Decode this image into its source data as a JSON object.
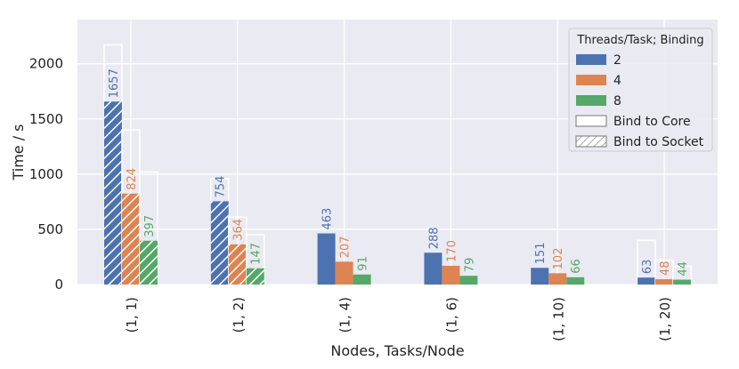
{
  "chart_data": {
    "type": "bar",
    "xlabel": "Nodes, Tasks/Node",
    "ylabel": "Time / s",
    "ylim": [
      0,
      2400
    ],
    "yticks": [
      0,
      500,
      1000,
      1500,
      2000
    ],
    "grid": true,
    "categories": [
      "(1, 1)",
      "(1, 2)",
      "(1, 4)",
      "(1, 6)",
      "(1, 10)",
      "(1, 20)"
    ],
    "legend": {
      "title": "Threads/Task; Binding",
      "placement": "top-right",
      "entries": [
        "2",
        "4",
        "8",
        "Bind to Core",
        "Bind to Socket"
      ]
    },
    "colors": {
      "2": "#4c72b0",
      "4": "#dd8452",
      "8": "#55a868",
      "grid": "#ffffff",
      "background": "#eaeaf2"
    },
    "series": [
      {
        "name": "2",
        "binding": "Bind to Socket",
        "values": [
          1657,
          754,
          null,
          null,
          null,
          63
        ]
      },
      {
        "name": "4",
        "binding": "Bind to Socket",
        "values": [
          824,
          364,
          null,
          null,
          null,
          48
        ]
      },
      {
        "name": "8",
        "binding": "Bind to Socket",
        "values": [
          397,
          147,
          null,
          null,
          null,
          44
        ]
      },
      {
        "name": "2",
        "binding": "Bind to Core",
        "values": [
          2170,
          960,
          463,
          288,
          151,
          400
        ]
      },
      {
        "name": "4",
        "binding": "Bind to Core",
        "values": [
          1400,
          610,
          207,
          170,
          102,
          220
        ]
      },
      {
        "name": "8",
        "binding": "Bind to Core",
        "values": [
          1020,
          450,
          91,
          79,
          66,
          165
        ]
      }
    ],
    "data_labels": [
      [
        "1657",
        "824",
        "397"
      ],
      [
        "754",
        "364",
        "147"
      ],
      [
        "463",
        "207",
        "91"
      ],
      [
        "288",
        "170",
        "79"
      ],
      [
        "151",
        "102",
        "66"
      ],
      [
        "63",
        "48",
        "44"
      ]
    ]
  }
}
